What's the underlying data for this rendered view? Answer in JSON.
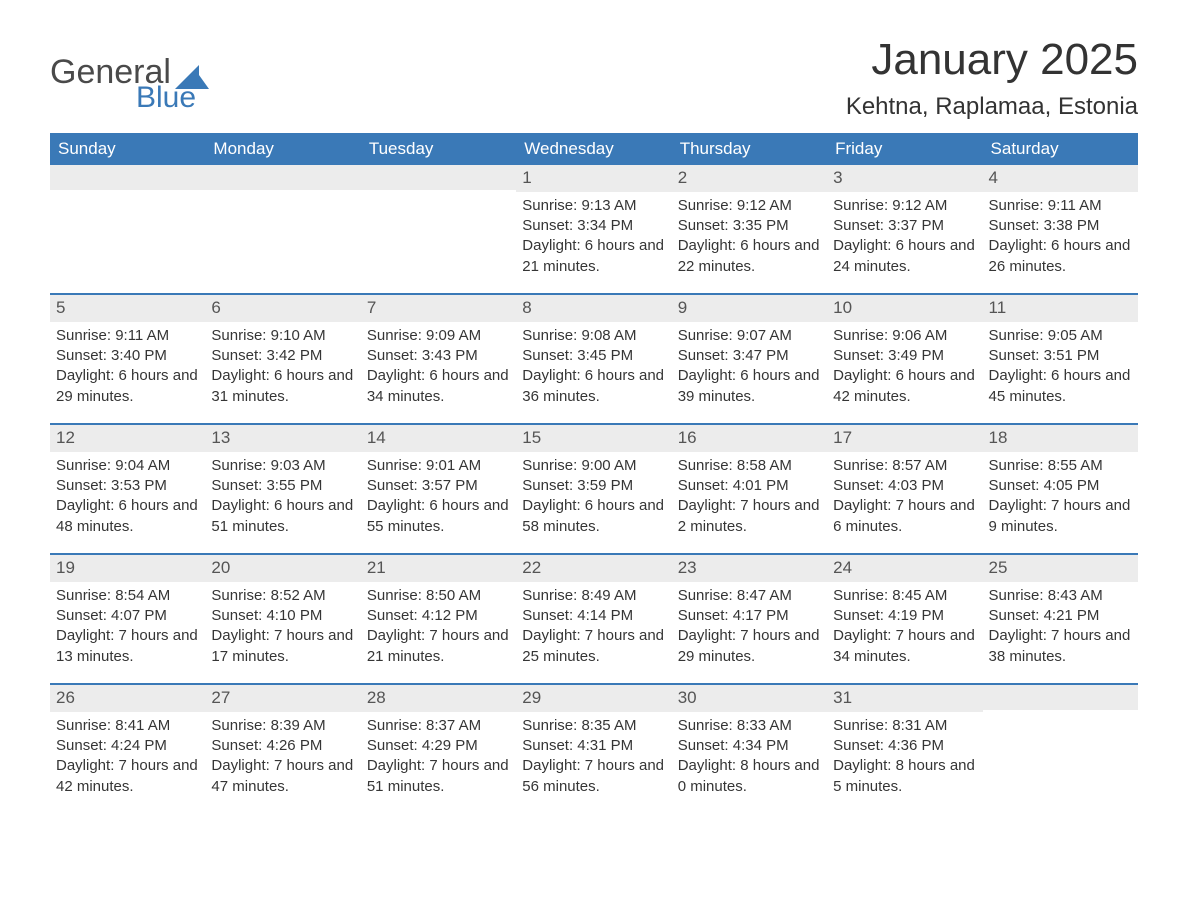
{
  "brand": {
    "name_top": "General",
    "name_bottom": "Blue",
    "text_color": "#4a4a4a",
    "accent_color": "#3a79b7"
  },
  "header": {
    "month_title": "January 2025",
    "location": "Kehtna, Raplamaa, Estonia"
  },
  "colors": {
    "header_bg": "#3a79b7",
    "header_text": "#ffffff",
    "day_number_bg": "#ececec",
    "text": "#333333",
    "row_border": "#3a79b7",
    "background": "#ffffff"
  },
  "typography": {
    "month_title_fontsize": 44,
    "location_fontsize": 24,
    "weekday_fontsize": 17,
    "day_number_fontsize": 17,
    "body_fontsize": 15
  },
  "weekdays": [
    "Sunday",
    "Monday",
    "Tuesday",
    "Wednesday",
    "Thursday",
    "Friday",
    "Saturday"
  ],
  "weeks": [
    [
      {
        "day": "",
        "sunrise": "",
        "sunset": "",
        "daylight": ""
      },
      {
        "day": "",
        "sunrise": "",
        "sunset": "",
        "daylight": ""
      },
      {
        "day": "",
        "sunrise": "",
        "sunset": "",
        "daylight": ""
      },
      {
        "day": "1",
        "sunrise": "Sunrise: 9:13 AM",
        "sunset": "Sunset: 3:34 PM",
        "daylight": "Daylight: 6 hours and 21 minutes."
      },
      {
        "day": "2",
        "sunrise": "Sunrise: 9:12 AM",
        "sunset": "Sunset: 3:35 PM",
        "daylight": "Daylight: 6 hours and 22 minutes."
      },
      {
        "day": "3",
        "sunrise": "Sunrise: 9:12 AM",
        "sunset": "Sunset: 3:37 PM",
        "daylight": "Daylight: 6 hours and 24 minutes."
      },
      {
        "day": "4",
        "sunrise": "Sunrise: 9:11 AM",
        "sunset": "Sunset: 3:38 PM",
        "daylight": "Daylight: 6 hours and 26 minutes."
      }
    ],
    [
      {
        "day": "5",
        "sunrise": "Sunrise: 9:11 AM",
        "sunset": "Sunset: 3:40 PM",
        "daylight": "Daylight: 6 hours and 29 minutes."
      },
      {
        "day": "6",
        "sunrise": "Sunrise: 9:10 AM",
        "sunset": "Sunset: 3:42 PM",
        "daylight": "Daylight: 6 hours and 31 minutes."
      },
      {
        "day": "7",
        "sunrise": "Sunrise: 9:09 AM",
        "sunset": "Sunset: 3:43 PM",
        "daylight": "Daylight: 6 hours and 34 minutes."
      },
      {
        "day": "8",
        "sunrise": "Sunrise: 9:08 AM",
        "sunset": "Sunset: 3:45 PM",
        "daylight": "Daylight: 6 hours and 36 minutes."
      },
      {
        "day": "9",
        "sunrise": "Sunrise: 9:07 AM",
        "sunset": "Sunset: 3:47 PM",
        "daylight": "Daylight: 6 hours and 39 minutes."
      },
      {
        "day": "10",
        "sunrise": "Sunrise: 9:06 AM",
        "sunset": "Sunset: 3:49 PM",
        "daylight": "Daylight: 6 hours and 42 minutes."
      },
      {
        "day": "11",
        "sunrise": "Sunrise: 9:05 AM",
        "sunset": "Sunset: 3:51 PM",
        "daylight": "Daylight: 6 hours and 45 minutes."
      }
    ],
    [
      {
        "day": "12",
        "sunrise": "Sunrise: 9:04 AM",
        "sunset": "Sunset: 3:53 PM",
        "daylight": "Daylight: 6 hours and 48 minutes."
      },
      {
        "day": "13",
        "sunrise": "Sunrise: 9:03 AM",
        "sunset": "Sunset: 3:55 PM",
        "daylight": "Daylight: 6 hours and 51 minutes."
      },
      {
        "day": "14",
        "sunrise": "Sunrise: 9:01 AM",
        "sunset": "Sunset: 3:57 PM",
        "daylight": "Daylight: 6 hours and 55 minutes."
      },
      {
        "day": "15",
        "sunrise": "Sunrise: 9:00 AM",
        "sunset": "Sunset: 3:59 PM",
        "daylight": "Daylight: 6 hours and 58 minutes."
      },
      {
        "day": "16",
        "sunrise": "Sunrise: 8:58 AM",
        "sunset": "Sunset: 4:01 PM",
        "daylight": "Daylight: 7 hours and 2 minutes."
      },
      {
        "day": "17",
        "sunrise": "Sunrise: 8:57 AM",
        "sunset": "Sunset: 4:03 PM",
        "daylight": "Daylight: 7 hours and 6 minutes."
      },
      {
        "day": "18",
        "sunrise": "Sunrise: 8:55 AM",
        "sunset": "Sunset: 4:05 PM",
        "daylight": "Daylight: 7 hours and 9 minutes."
      }
    ],
    [
      {
        "day": "19",
        "sunrise": "Sunrise: 8:54 AM",
        "sunset": "Sunset: 4:07 PM",
        "daylight": "Daylight: 7 hours and 13 minutes."
      },
      {
        "day": "20",
        "sunrise": "Sunrise: 8:52 AM",
        "sunset": "Sunset: 4:10 PM",
        "daylight": "Daylight: 7 hours and 17 minutes."
      },
      {
        "day": "21",
        "sunrise": "Sunrise: 8:50 AM",
        "sunset": "Sunset: 4:12 PM",
        "daylight": "Daylight: 7 hours and 21 minutes."
      },
      {
        "day": "22",
        "sunrise": "Sunrise: 8:49 AM",
        "sunset": "Sunset: 4:14 PM",
        "daylight": "Daylight: 7 hours and 25 minutes."
      },
      {
        "day": "23",
        "sunrise": "Sunrise: 8:47 AM",
        "sunset": "Sunset: 4:17 PM",
        "daylight": "Daylight: 7 hours and 29 minutes."
      },
      {
        "day": "24",
        "sunrise": "Sunrise: 8:45 AM",
        "sunset": "Sunset: 4:19 PM",
        "daylight": "Daylight: 7 hours and 34 minutes."
      },
      {
        "day": "25",
        "sunrise": "Sunrise: 8:43 AM",
        "sunset": "Sunset: 4:21 PM",
        "daylight": "Daylight: 7 hours and 38 minutes."
      }
    ],
    [
      {
        "day": "26",
        "sunrise": "Sunrise: 8:41 AM",
        "sunset": "Sunset: 4:24 PM",
        "daylight": "Daylight: 7 hours and 42 minutes."
      },
      {
        "day": "27",
        "sunrise": "Sunrise: 8:39 AM",
        "sunset": "Sunset: 4:26 PM",
        "daylight": "Daylight: 7 hours and 47 minutes."
      },
      {
        "day": "28",
        "sunrise": "Sunrise: 8:37 AM",
        "sunset": "Sunset: 4:29 PM",
        "daylight": "Daylight: 7 hours and 51 minutes."
      },
      {
        "day": "29",
        "sunrise": "Sunrise: 8:35 AM",
        "sunset": "Sunset: 4:31 PM",
        "daylight": "Daylight: 7 hours and 56 minutes."
      },
      {
        "day": "30",
        "sunrise": "Sunrise: 8:33 AM",
        "sunset": "Sunset: 4:34 PM",
        "daylight": "Daylight: 8 hours and 0 minutes."
      },
      {
        "day": "31",
        "sunrise": "Sunrise: 8:31 AM",
        "sunset": "Sunset: 4:36 PM",
        "daylight": "Daylight: 8 hours and 5 minutes."
      },
      {
        "day": "",
        "sunrise": "",
        "sunset": "",
        "daylight": ""
      }
    ]
  ]
}
